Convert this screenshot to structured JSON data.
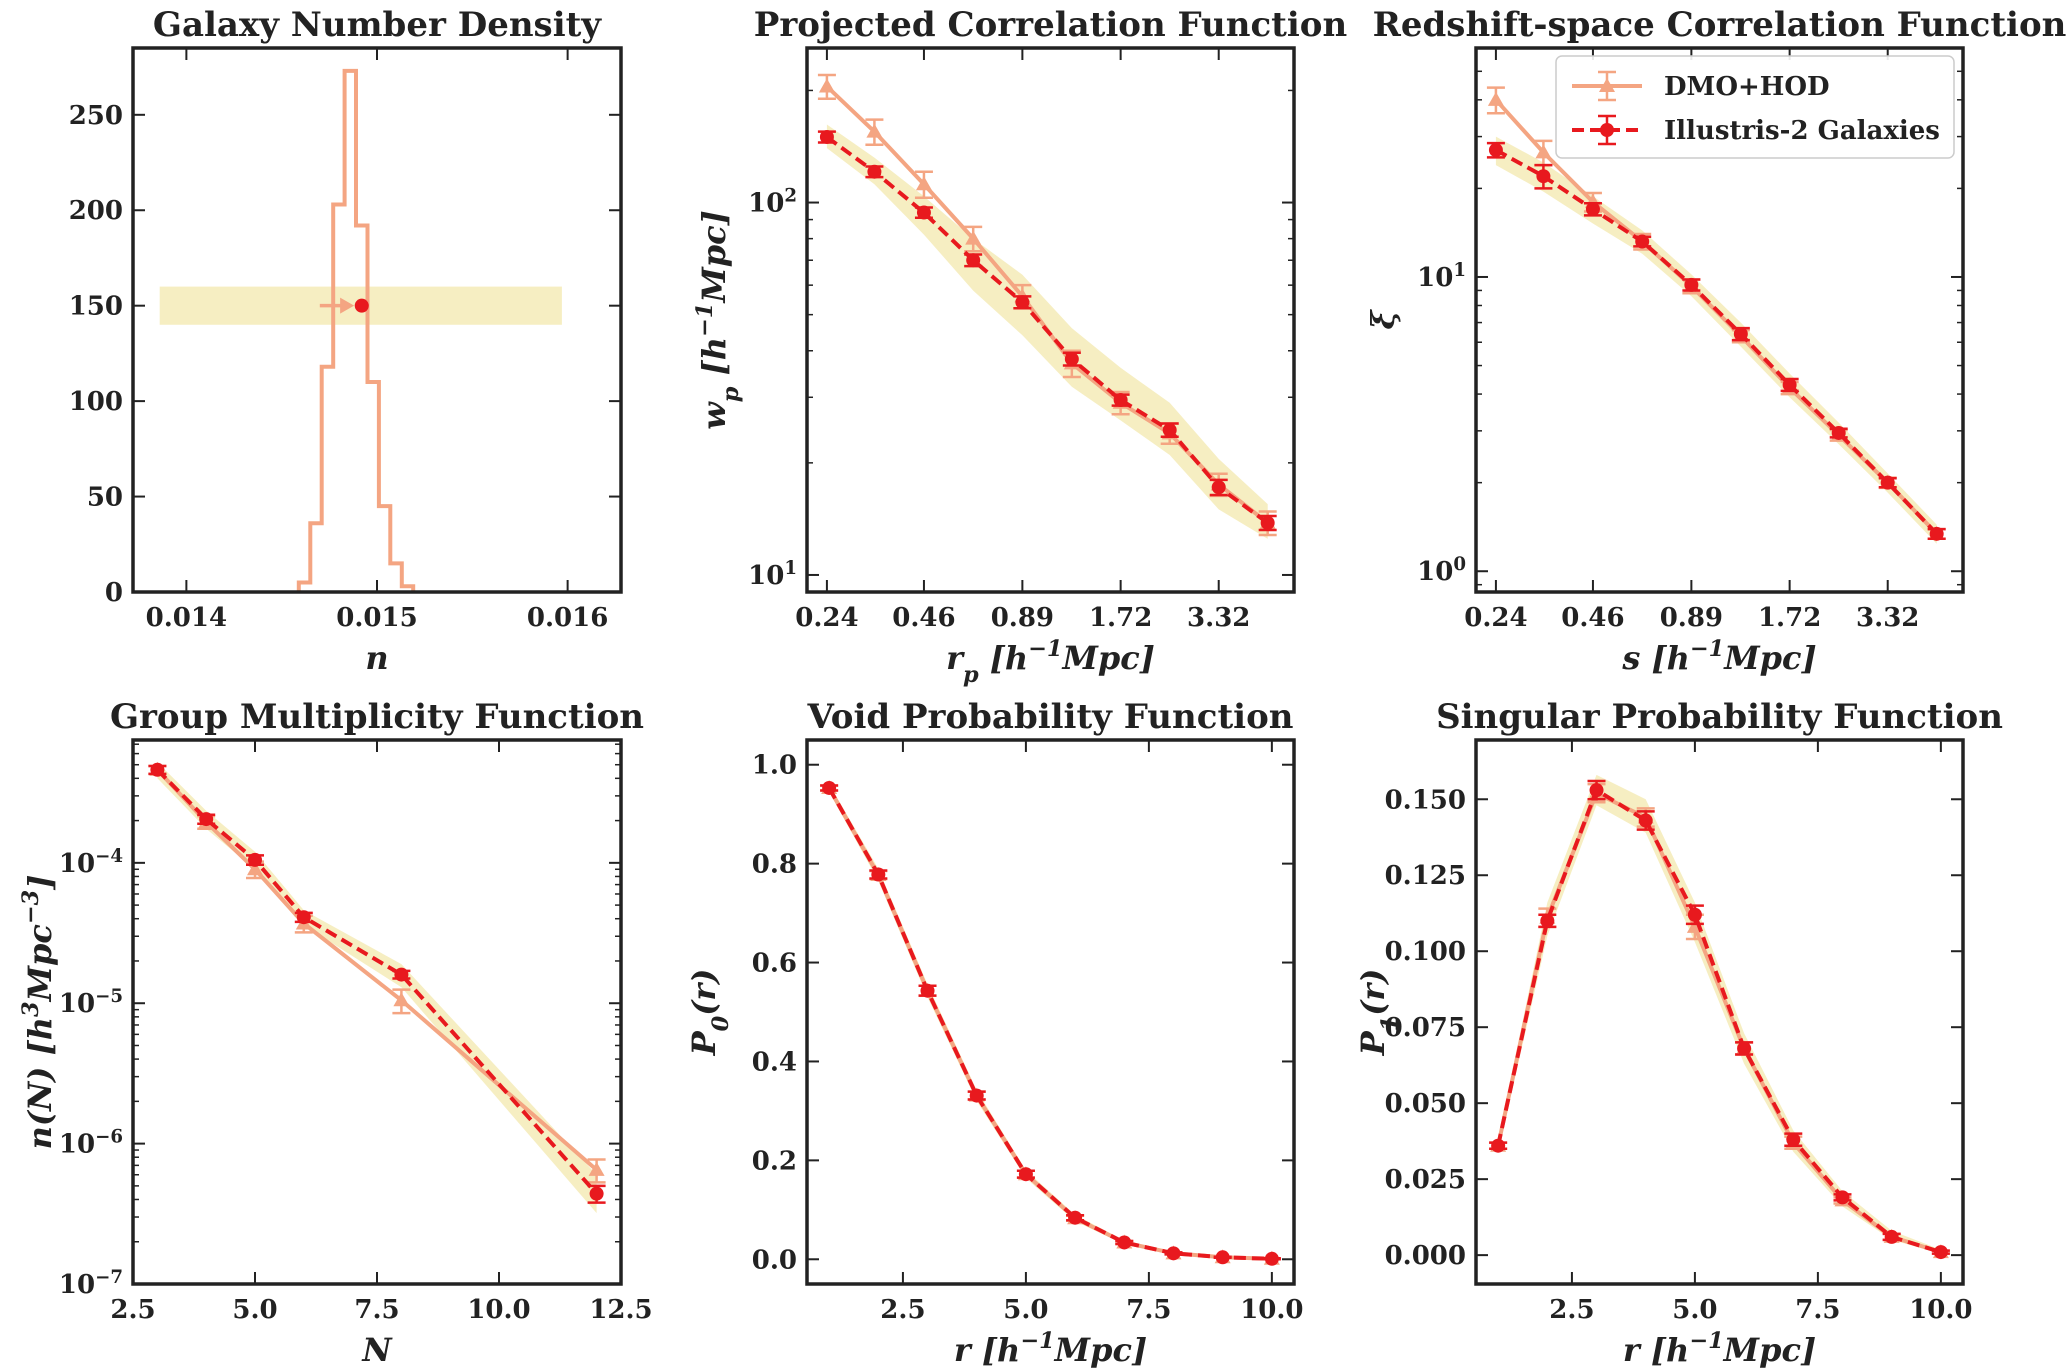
{
  "legend": {
    "location": "upper right of Redshift-space Correlation Function panel",
    "entries": [
      {
        "label": "DMO+HOD",
        "color": "#f4a582",
        "style": "solid",
        "marker": "triangle"
      },
      {
        "label": "Illustris-2 Galaxies",
        "color": "#e8191e",
        "style": "dashed",
        "marker": "circle"
      }
    ]
  },
  "colors": {
    "dmo": "#f4a582",
    "illustris": "#e8191e",
    "band": "#f0e39a"
  },
  "chart_data": [
    {
      "id": "number-density",
      "type": "histogram",
      "title": "Galaxy Number Density",
      "xlabel": "n",
      "ylabel": "",
      "xlim": [
        0.01372,
        0.01628
      ],
      "ylim": [
        0,
        285
      ],
      "xticks": [
        {
          "v": 0.014,
          "label": "0.014"
        },
        {
          "v": 0.015,
          "label": "0.015"
        },
        {
          "v": 0.016,
          "label": "0.016"
        }
      ],
      "yticks": [
        {
          "v": 0,
          "label": "0"
        },
        {
          "v": 50,
          "label": "50"
        },
        {
          "v": 100,
          "label": "100"
        },
        {
          "v": 150,
          "label": "150"
        },
        {
          "v": 200,
          "label": "200"
        },
        {
          "v": 250,
          "label": "250"
        }
      ],
      "bin_edges": [
        0.01459,
        0.01465,
        0.01471,
        0.01477,
        0.01483,
        0.01489,
        0.01495,
        0.01501,
        0.01507,
        0.01513,
        0.01519
      ],
      "counts": [
        5,
        36,
        118,
        203,
        273,
        192,
        110,
        45,
        15,
        3
      ],
      "band": {
        "x": [
          0.01386,
          0.01597
        ],
        "y": [
          140,
          160
        ]
      },
      "illustris_point": {
        "x": 0.01492,
        "y": 150
      },
      "dmo_arrow": {
        "x_from": 0.0147,
        "x_to": 0.01488,
        "y": 150
      }
    },
    {
      "id": "projected-correlation",
      "type": "line",
      "yscale": "log",
      "xscale": "log",
      "title": "Projected Correlation Function",
      "xlabel": "r_p [h^{-1}Mpc]",
      "ylabel": "w_p [h^{-1}Mpc]",
      "xlim": [
        0.21,
        5.5
      ],
      "ylim": [
        9,
        260
      ],
      "xticks": [
        {
          "v": 0.24,
          "label": "0.24"
        },
        {
          "v": 0.46,
          "label": "0.46"
        },
        {
          "v": 0.89,
          "label": "0.89"
        },
        {
          "v": 1.72,
          "label": "1.72"
        },
        {
          "v": 3.32,
          "label": "3.32"
        }
      ],
      "yticks_major": [
        {
          "v": 10,
          "base": "10",
          "exp": "1"
        },
        {
          "v": 100,
          "base": "10",
          "exp": "2"
        }
      ],
      "x": [
        0.24,
        0.33,
        0.46,
        0.64,
        0.89,
        1.24,
        1.72,
        2.39,
        3.32,
        4.61
      ],
      "series": [
        {
          "name": "DMO+HOD",
          "values": [
            205,
            155,
            112,
            80,
            56,
            37,
            29,
            24,
            17.5,
            13.8
          ],
          "err": [
            15,
            12,
            9,
            6,
            4,
            3,
            2,
            1.5,
            1.2,
            1
          ]
        },
        {
          "name": "Illustris-2 Galaxies",
          "values": [
            150,
            121,
            94,
            70,
            54,
            38,
            29.5,
            24.5,
            17.2,
            13.8
          ],
          "err": [
            5,
            4,
            3,
            2.5,
            2,
            1.5,
            1,
            1,
            0.8,
            0.6
          ]
        }
      ],
      "band": {
        "lo": [
          140,
          112,
          82,
          58,
          44,
          32,
          26,
          21,
          15,
          12.5
        ],
        "hi": [
          162,
          132,
          104,
          80,
          64,
          46,
          36,
          29,
          20.5,
          15.5
        ]
      }
    },
    {
      "id": "redshift-correlation",
      "type": "line",
      "yscale": "log",
      "xscale": "log",
      "title": "Redshift-space Correlation Function",
      "xlabel": "s [h^{-1}Mpc]",
      "ylabel": "ξ",
      "xlim": [
        0.21,
        5.5
      ],
      "ylim": [
        0.85,
        60
      ],
      "xticks": [
        {
          "v": 0.24,
          "label": "0.24"
        },
        {
          "v": 0.46,
          "label": "0.46"
        },
        {
          "v": 0.89,
          "label": "0.89"
        },
        {
          "v": 1.72,
          "label": "1.72"
        },
        {
          "v": 3.32,
          "label": "3.32"
        }
      ],
      "yticks_major": [
        {
          "v": 1,
          "base": "10",
          "exp": "0"
        },
        {
          "v": 10,
          "base": "10",
          "exp": "1"
        }
      ],
      "x": [
        0.24,
        0.33,
        0.46,
        0.64,
        0.89,
        1.24,
        1.72,
        2.39,
        3.32,
        4.61
      ],
      "series": [
        {
          "name": "DMO+HOD",
          "values": [
            40,
            26.5,
            18,
            13.2,
            9.3,
            6.3,
            4.2,
            2.9,
            2.0,
            1.34
          ],
          "err": [
            4,
            2.5,
            1.3,
            0.8,
            0.5,
            0.3,
            0.2,
            0.12,
            0.08,
            0.05
          ]
        },
        {
          "name": "Illustris-2 Galaxies",
          "values": [
            27,
            22,
            17,
            13.2,
            9.4,
            6.4,
            4.3,
            2.95,
            2.0,
            1.34
          ],
          "err": [
            1.5,
            2,
            0.8,
            0.5,
            0.4,
            0.3,
            0.2,
            0.1,
            0.07,
            0.05
          ]
        }
      ],
      "band": {
        "lo": [
          24,
          19.5,
          15.2,
          12,
          8.6,
          5.8,
          3.9,
          2.7,
          1.85,
          1.24
        ],
        "hi": [
          30,
          24.5,
          18.8,
          14.4,
          10.2,
          7.0,
          4.7,
          3.2,
          2.15,
          1.44
        ]
      }
    },
    {
      "id": "group-multiplicity",
      "type": "line",
      "yscale": "log",
      "title": "Group Multiplicity Function",
      "xlabel": "N",
      "ylabel": "n(N) [h^3Mpc^{-3}]",
      "xlim": [
        2.5,
        12.5
      ],
      "ylim": [
        1e-07,
        0.00075
      ],
      "xticks": [
        {
          "v": 2.5,
          "label": "2.5"
        },
        {
          "v": 5,
          "label": "5.0"
        },
        {
          "v": 7.5,
          "label": "7.5"
        },
        {
          "v": 10,
          "label": "10.0"
        },
        {
          "v": 12.5,
          "label": "12.5"
        }
      ],
      "yticks_major": [
        {
          "v": 1e-07,
          "base": "10",
          "exp": "−7"
        },
        {
          "v": 1e-06,
          "base": "10",
          "exp": "−6"
        },
        {
          "v": 1e-05,
          "base": "10",
          "exp": "−5"
        },
        {
          "v": 0.0001,
          "base": "10",
          "exp": "−4"
        }
      ],
      "x": [
        3,
        4,
        5,
        6,
        8,
        12
      ],
      "series": [
        {
          "name": "DMO+HOD",
          "values": [
            0.00046,
            0.000195,
            9e-05,
            3.7e-05,
            1.05e-05,
            6.5e-07
          ],
          "err": [
            3e-05,
            2e-05,
            1.2e-05,
            5e-06,
            2e-06,
            1.2e-07
          ]
        },
        {
          "name": "Illustris-2 Galaxies",
          "values": [
            0.00046,
            0.000205,
            0.000105,
            4.1e-05,
            1.6e-05,
            4.4e-07
          ],
          "err": [
            3e-05,
            1.5e-05,
            8e-06,
            3e-06,
            1e-06,
            6e-08
          ]
        }
      ],
      "band": {
        "lo": [
          0.0004,
          0.000175,
          9e-05,
          3.6e-05,
          1.3e-05,
          3.2e-07
        ],
        "hi": [
          0.00052,
          0.000235,
          0.00012,
          4.6e-05,
          1.9e-05,
          6e-07
        ]
      }
    },
    {
      "id": "void-probability",
      "type": "line",
      "title": "Void Probability Function",
      "xlabel": "r [h^{-1}Mpc]",
      "ylabel": "P_0(r)",
      "xlim": [
        0.55,
        10.45
      ],
      "ylim": [
        -0.05,
        1.05
      ],
      "xticks": [
        {
          "v": 2.5,
          "label": "2.5"
        },
        {
          "v": 5,
          "label": "5.0"
        },
        {
          "v": 7.5,
          "label": "7.5"
        },
        {
          "v": 10,
          "label": "10.0"
        }
      ],
      "yticks": [
        {
          "v": 0,
          "label": "0.0"
        },
        {
          "v": 0.2,
          "label": "0.2"
        },
        {
          "v": 0.4,
          "label": "0.4"
        },
        {
          "v": 0.6,
          "label": "0.6"
        },
        {
          "v": 0.8,
          "label": "0.8"
        },
        {
          "v": 1.0,
          "label": "1.0"
        }
      ],
      "x": [
        1,
        2,
        3,
        4,
        5,
        6,
        7,
        8,
        9,
        10
      ],
      "series": [
        {
          "name": "DMO+HOD",
          "values": [
            0.953,
            0.777,
            0.543,
            0.331,
            0.172,
            0.083,
            0.034,
            0.012,
            0.004,
            0.001
          ],
          "err": [
            0.005,
            0.008,
            0.01,
            0.008,
            0.007,
            0.005,
            0.003,
            0.002,
            0.001,
            0.001
          ]
        },
        {
          "name": "Illustris-2 Galaxies",
          "values": [
            0.953,
            0.778,
            0.543,
            0.331,
            0.172,
            0.084,
            0.034,
            0.012,
            0.004,
            0.001
          ],
          "err": [
            0.005,
            0.008,
            0.01,
            0.008,
            0.007,
            0.005,
            0.003,
            0.002,
            0.001,
            0.001
          ]
        }
      ],
      "band": {
        "lo": [
          0.945,
          0.765,
          0.53,
          0.32,
          0.164,
          0.077,
          0.03,
          0.01,
          0.003,
          0.0
        ],
        "hi": [
          0.961,
          0.79,
          0.556,
          0.342,
          0.18,
          0.09,
          0.038,
          0.015,
          0.006,
          0.002
        ]
      }
    },
    {
      "id": "singular-probability",
      "type": "line",
      "title": "Singular Probability Function",
      "xlabel": "r [h^{-1}Mpc]",
      "ylabel": "P_1(r)",
      "xlim": [
        0.55,
        10.45
      ],
      "ylim": [
        -0.0095,
        0.1695
      ],
      "xticks": [
        {
          "v": 2.5,
          "label": "2.5"
        },
        {
          "v": 5,
          "label": "5.0"
        },
        {
          "v": 7.5,
          "label": "7.5"
        },
        {
          "v": 10,
          "label": "10.0"
        }
      ],
      "yticks": [
        {
          "v": 0,
          "label": "0.000"
        },
        {
          "v": 0.025,
          "label": "0.025"
        },
        {
          "v": 0.05,
          "label": "0.050"
        },
        {
          "v": 0.075,
          "label": "0.075"
        },
        {
          "v": 0.1,
          "label": "0.100"
        },
        {
          "v": 0.125,
          "label": "0.125"
        },
        {
          "v": 0.15,
          "label": "0.150"
        }
      ],
      "x": [
        1,
        2,
        3,
        4,
        5,
        6,
        7,
        8,
        9,
        10
      ],
      "series": [
        {
          "name": "DMO+HOD",
          "values": [
            0.036,
            0.111,
            0.152,
            0.144,
            0.108,
            0.068,
            0.037,
            0.018,
            0.006,
            0.001
          ],
          "err": [
            0.001,
            0.003,
            0.003,
            0.003,
            0.004,
            0.002,
            0.002,
            0.001,
            0.001,
            0.0005
          ]
        },
        {
          "name": "Illustris-2 Galaxies",
          "values": [
            0.036,
            0.11,
            0.153,
            0.143,
            0.112,
            0.068,
            0.038,
            0.019,
            0.006,
            0.001
          ],
          "err": [
            0.001,
            0.002,
            0.003,
            0.003,
            0.003,
            0.002,
            0.002,
            0.001,
            0.001,
            0.0005
          ]
        }
      ],
      "band": {
        "lo": [
          0.034,
          0.105,
          0.148,
          0.139,
          0.103,
          0.063,
          0.034,
          0.016,
          0.005,
          0.0005
        ],
        "hi": [
          0.038,
          0.116,
          0.158,
          0.15,
          0.116,
          0.073,
          0.041,
          0.021,
          0.008,
          0.0018
        ]
      }
    }
  ]
}
